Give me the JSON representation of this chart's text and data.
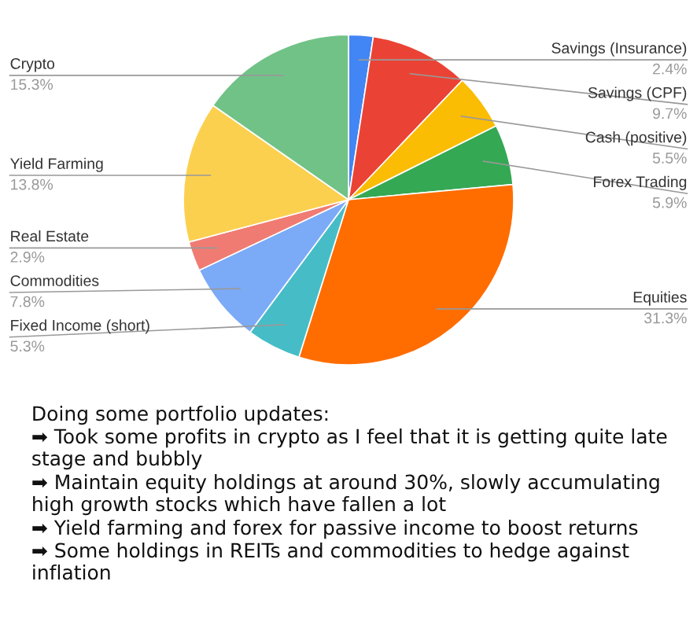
{
  "chart_data": {
    "type": "pie",
    "categories": [
      "Savings (Insurance)",
      "Savings (CPF)",
      "Cash (positive)",
      "Forex Trading",
      "Equities",
      "Fixed Income (short)",
      "Commodities",
      "Real Estate",
      "Yield Farming",
      "Crypto"
    ],
    "values": [
      2.4,
      9.7,
      5.5,
      5.9,
      31.3,
      5.3,
      7.8,
      2.9,
      13.8,
      15.3
    ],
    "value_labels": [
      "2.4%",
      "9.7%",
      "5.5%",
      "5.9%",
      "31.3%",
      "5.3%",
      "7.8%",
      "2.9%",
      "13.8%",
      "15.3%"
    ],
    "colors": [
      "#4285f4",
      "#ea4335",
      "#fbbc04",
      "#34a853",
      "#ff6d01",
      "#46bdc6",
      "#7baaf7",
      "#f07b72",
      "#fcd04f",
      "#71c287"
    ],
    "legend": false,
    "annotations": [
      "Doing some portfolio updates:",
      "➡ Took some profits in crypto as I feel that it is getting quite late stage and bubbly",
      "➡ Maintain equity holdings at around 30%, slowly accumulating high growth stocks which have fallen a lot",
      "➡ Yield farming and forex for passive income to boost returns",
      "➡ Some holdings in REITs and commodities to hedge against inflation"
    ]
  }
}
